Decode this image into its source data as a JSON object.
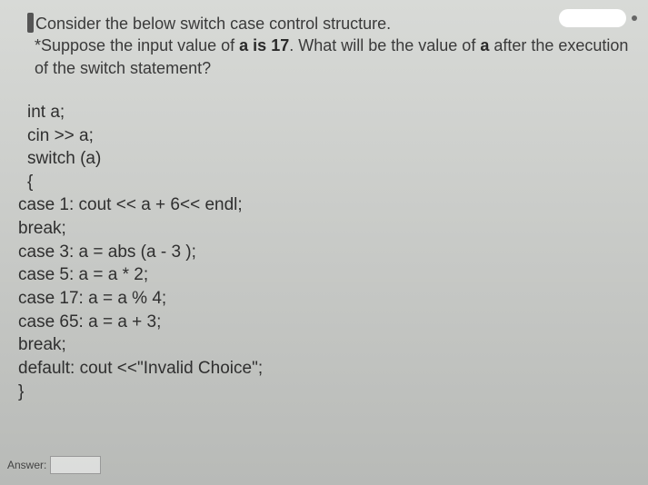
{
  "question": {
    "line1_prefix_cursor": true,
    "line1": "Consider the below switch case control structure.",
    "line2_pre": "*Suppose the input value of ",
    "line2_bold1": "a is 17",
    "line2_mid": ". What will be the value of ",
    "line2_bold2": "a",
    "line2_post": " after the execution",
    "line3": "of the switch statement?"
  },
  "code": {
    "l1": "int a;",
    "l2": "cin >> a;",
    "l3": "switch (a)",
    "l4": "{",
    "l5": "case 1: cout << a + 6<< endl;",
    "l6": "break;",
    "l7": "case 3: a = abs (a - 3 );",
    "l8": "case 5: a = a * 2;",
    "l9": "case 17: a = a % 4;",
    "l10": "case 65: a = a + 3;",
    "l11": "break;",
    "l12": "default: cout <<\"Invalid Choice\";",
    "l13": "}"
  },
  "answer": {
    "label": "Answer:",
    "value": ""
  }
}
